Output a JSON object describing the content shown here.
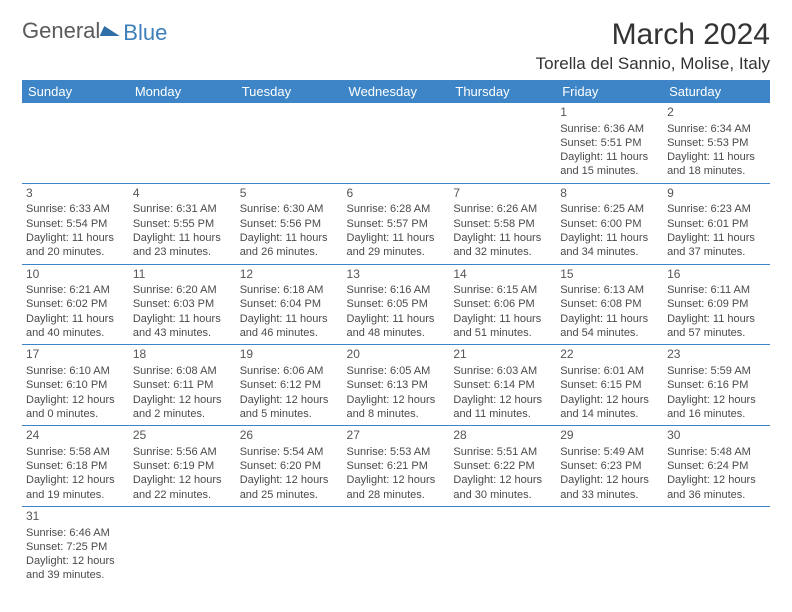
{
  "logo": {
    "text1": "General",
    "text2": "Blue"
  },
  "title": "March 2024",
  "location": "Torella del Sannio, Molise, Italy",
  "colors": {
    "header_bg": "#3d85c6",
    "header_text": "#ffffff",
    "rule": "#3d85c6",
    "body_text": "#4a4a4a",
    "title_text": "#333333",
    "logo_gray": "#5a5a5a",
    "logo_blue": "#3d7fb8"
  },
  "fonts": {
    "title_pt": 30,
    "location_pt": 17,
    "dayhdr_pt": 13,
    "daynum_pt": 12,
    "cell_pt": 11
  },
  "days": [
    "Sunday",
    "Monday",
    "Tuesday",
    "Wednesday",
    "Thursday",
    "Friday",
    "Saturday"
  ],
  "grid": [
    [
      null,
      null,
      null,
      null,
      null,
      {
        "n": "1",
        "sr": "Sunrise: 6:36 AM",
        "ss": "Sunset: 5:51 PM",
        "d1": "Daylight: 11 hours",
        "d2": "and 15 minutes."
      },
      {
        "n": "2",
        "sr": "Sunrise: 6:34 AM",
        "ss": "Sunset: 5:53 PM",
        "d1": "Daylight: 11 hours",
        "d2": "and 18 minutes."
      }
    ],
    [
      {
        "n": "3",
        "sr": "Sunrise: 6:33 AM",
        "ss": "Sunset: 5:54 PM",
        "d1": "Daylight: 11 hours",
        "d2": "and 20 minutes."
      },
      {
        "n": "4",
        "sr": "Sunrise: 6:31 AM",
        "ss": "Sunset: 5:55 PM",
        "d1": "Daylight: 11 hours",
        "d2": "and 23 minutes."
      },
      {
        "n": "5",
        "sr": "Sunrise: 6:30 AM",
        "ss": "Sunset: 5:56 PM",
        "d1": "Daylight: 11 hours",
        "d2": "and 26 minutes."
      },
      {
        "n": "6",
        "sr": "Sunrise: 6:28 AM",
        "ss": "Sunset: 5:57 PM",
        "d1": "Daylight: 11 hours",
        "d2": "and 29 minutes."
      },
      {
        "n": "7",
        "sr": "Sunrise: 6:26 AM",
        "ss": "Sunset: 5:58 PM",
        "d1": "Daylight: 11 hours",
        "d2": "and 32 minutes."
      },
      {
        "n": "8",
        "sr": "Sunrise: 6:25 AM",
        "ss": "Sunset: 6:00 PM",
        "d1": "Daylight: 11 hours",
        "d2": "and 34 minutes."
      },
      {
        "n": "9",
        "sr": "Sunrise: 6:23 AM",
        "ss": "Sunset: 6:01 PM",
        "d1": "Daylight: 11 hours",
        "d2": "and 37 minutes."
      }
    ],
    [
      {
        "n": "10",
        "sr": "Sunrise: 6:21 AM",
        "ss": "Sunset: 6:02 PM",
        "d1": "Daylight: 11 hours",
        "d2": "and 40 minutes."
      },
      {
        "n": "11",
        "sr": "Sunrise: 6:20 AM",
        "ss": "Sunset: 6:03 PM",
        "d1": "Daylight: 11 hours",
        "d2": "and 43 minutes."
      },
      {
        "n": "12",
        "sr": "Sunrise: 6:18 AM",
        "ss": "Sunset: 6:04 PM",
        "d1": "Daylight: 11 hours",
        "d2": "and 46 minutes."
      },
      {
        "n": "13",
        "sr": "Sunrise: 6:16 AM",
        "ss": "Sunset: 6:05 PM",
        "d1": "Daylight: 11 hours",
        "d2": "and 48 minutes."
      },
      {
        "n": "14",
        "sr": "Sunrise: 6:15 AM",
        "ss": "Sunset: 6:06 PM",
        "d1": "Daylight: 11 hours",
        "d2": "and 51 minutes."
      },
      {
        "n": "15",
        "sr": "Sunrise: 6:13 AM",
        "ss": "Sunset: 6:08 PM",
        "d1": "Daylight: 11 hours",
        "d2": "and 54 minutes."
      },
      {
        "n": "16",
        "sr": "Sunrise: 6:11 AM",
        "ss": "Sunset: 6:09 PM",
        "d1": "Daylight: 11 hours",
        "d2": "and 57 minutes."
      }
    ],
    [
      {
        "n": "17",
        "sr": "Sunrise: 6:10 AM",
        "ss": "Sunset: 6:10 PM",
        "d1": "Daylight: 12 hours",
        "d2": "and 0 minutes."
      },
      {
        "n": "18",
        "sr": "Sunrise: 6:08 AM",
        "ss": "Sunset: 6:11 PM",
        "d1": "Daylight: 12 hours",
        "d2": "and 2 minutes."
      },
      {
        "n": "19",
        "sr": "Sunrise: 6:06 AM",
        "ss": "Sunset: 6:12 PM",
        "d1": "Daylight: 12 hours",
        "d2": "and 5 minutes."
      },
      {
        "n": "20",
        "sr": "Sunrise: 6:05 AM",
        "ss": "Sunset: 6:13 PM",
        "d1": "Daylight: 12 hours",
        "d2": "and 8 minutes."
      },
      {
        "n": "21",
        "sr": "Sunrise: 6:03 AM",
        "ss": "Sunset: 6:14 PM",
        "d1": "Daylight: 12 hours",
        "d2": "and 11 minutes."
      },
      {
        "n": "22",
        "sr": "Sunrise: 6:01 AM",
        "ss": "Sunset: 6:15 PM",
        "d1": "Daylight: 12 hours",
        "d2": "and 14 minutes."
      },
      {
        "n": "23",
        "sr": "Sunrise: 5:59 AM",
        "ss": "Sunset: 6:16 PM",
        "d1": "Daylight: 12 hours",
        "d2": "and 16 minutes."
      }
    ],
    [
      {
        "n": "24",
        "sr": "Sunrise: 5:58 AM",
        "ss": "Sunset: 6:18 PM",
        "d1": "Daylight: 12 hours",
        "d2": "and 19 minutes."
      },
      {
        "n": "25",
        "sr": "Sunrise: 5:56 AM",
        "ss": "Sunset: 6:19 PM",
        "d1": "Daylight: 12 hours",
        "d2": "and 22 minutes."
      },
      {
        "n": "26",
        "sr": "Sunrise: 5:54 AM",
        "ss": "Sunset: 6:20 PM",
        "d1": "Daylight: 12 hours",
        "d2": "and 25 minutes."
      },
      {
        "n": "27",
        "sr": "Sunrise: 5:53 AM",
        "ss": "Sunset: 6:21 PM",
        "d1": "Daylight: 12 hours",
        "d2": "and 28 minutes."
      },
      {
        "n": "28",
        "sr": "Sunrise: 5:51 AM",
        "ss": "Sunset: 6:22 PM",
        "d1": "Daylight: 12 hours",
        "d2": "and 30 minutes."
      },
      {
        "n": "29",
        "sr": "Sunrise: 5:49 AM",
        "ss": "Sunset: 6:23 PM",
        "d1": "Daylight: 12 hours",
        "d2": "and 33 minutes."
      },
      {
        "n": "30",
        "sr": "Sunrise: 5:48 AM",
        "ss": "Sunset: 6:24 PM",
        "d1": "Daylight: 12 hours",
        "d2": "and 36 minutes."
      }
    ],
    [
      {
        "n": "31",
        "sr": "Sunrise: 6:46 AM",
        "ss": "Sunset: 7:25 PM",
        "d1": "Daylight: 12 hours",
        "d2": "and 39 minutes."
      },
      null,
      null,
      null,
      null,
      null,
      null
    ]
  ]
}
